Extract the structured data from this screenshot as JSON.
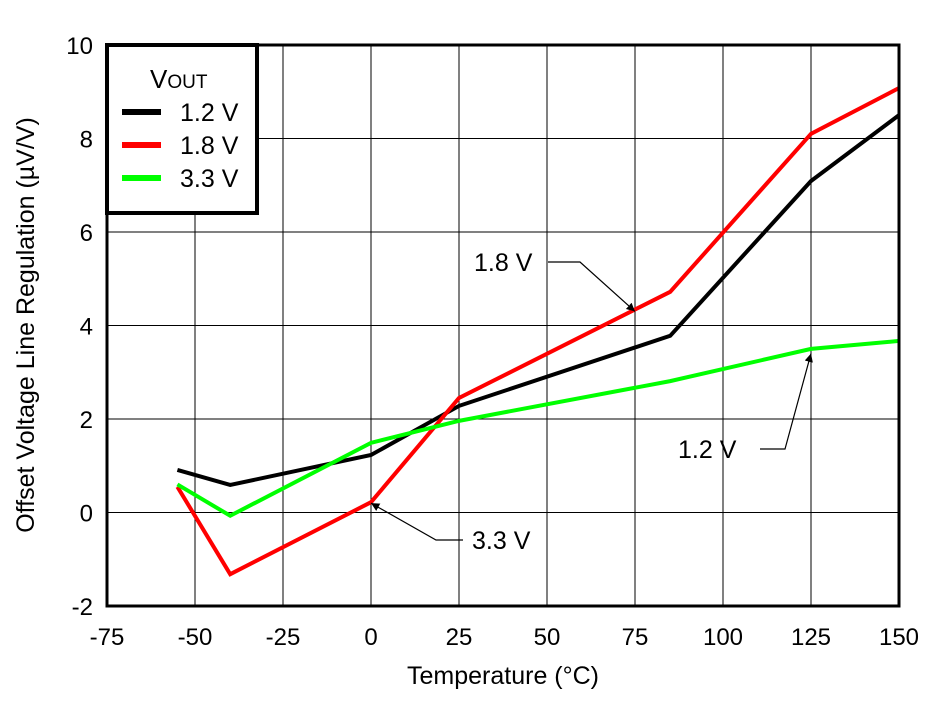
{
  "chart_data": {
    "type": "line",
    "xlabel": "Temperature (°C)",
    "ylabel": "Offset Voltage Line Regulation (µV/V)",
    "xlim": [
      -75,
      150
    ],
    "ylim": [
      -2,
      10
    ],
    "xticks": [
      "-75",
      "-50",
      "-25",
      "0",
      "25",
      "50",
      "75",
      "100",
      "125",
      "150"
    ],
    "yticks": [
      "-2",
      "0",
      "2",
      "4",
      "6",
      "8",
      "10"
    ],
    "grid": true,
    "legend": {
      "title_main": "V",
      "title_sub": "OUT",
      "placement": "top-left"
    },
    "x": [
      -55,
      -40,
      0,
      25,
      85,
      125,
      150
    ],
    "series": [
      {
        "name": "1.2 V",
        "color": "#000000",
        "values": [
          0.91,
          0.59,
          1.23,
          2.28,
          3.78,
          7.09,
          8.5
        ]
      },
      {
        "name": "1.8 V",
        "color": "#ff0000",
        "values": [
          0.55,
          -1.32,
          0.22,
          2.45,
          4.72,
          8.1,
          9.08
        ]
      },
      {
        "name": "3.3 V",
        "color": "#00ff00",
        "values": [
          0.6,
          -0.07,
          1.49,
          1.96,
          2.81,
          3.5,
          3.67
        ]
      }
    ],
    "annotations": [
      {
        "text": "1.8 V",
        "series": "1.8 V",
        "target": [
          75,
          4.3
        ]
      },
      {
        "text": "1.2 V",
        "series": "1.2 V",
        "target": [
          125,
          3.4
        ]
      },
      {
        "text": "3.3 V",
        "series": "3.3 V",
        "target": [
          0,
          0.2
        ]
      }
    ]
  }
}
